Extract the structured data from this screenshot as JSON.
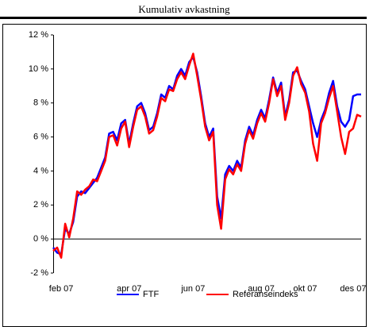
{
  "chart_data": {
    "type": "line",
    "title": "Kumulativ avkastning",
    "categories": [
      null,
      null,
      "feb 07",
      null,
      null,
      null,
      null,
      null,
      null,
      null,
      null,
      null,
      null,
      null,
      null,
      null,
      null,
      null,
      null,
      "apr 07",
      null,
      null,
      null,
      null,
      null,
      null,
      null,
      null,
      null,
      null,
      null,
      null,
      null,
      null,
      null,
      "jun 07",
      null,
      null,
      null,
      null,
      null,
      null,
      null,
      null,
      null,
      null,
      null,
      null,
      null,
      null,
      null,
      null,
      "aug 07",
      null,
      null,
      null,
      null,
      null,
      null,
      null,
      null,
      null,
      null,
      "okt 07",
      null,
      null,
      null,
      null,
      null,
      null,
      null,
      null,
      null,
      null,
      null,
      "des 07",
      null,
      null
    ],
    "series": [
      {
        "name": "FTF",
        "color": "#0000ff",
        "values": [
          -0.5,
          -0.8,
          -0.9,
          0.6,
          0.3,
          1.0,
          2.5,
          2.8,
          2.7,
          3.0,
          3.3,
          3.6,
          4.2,
          4.8,
          6.2,
          6.3,
          5.8,
          6.8,
          7.0,
          5.6,
          6.8,
          7.8,
          8.0,
          7.4,
          6.4,
          6.6,
          7.4,
          8.5,
          8.3,
          9.0,
          8.8,
          9.6,
          10.0,
          9.6,
          10.4,
          10.7,
          9.8,
          8.4,
          6.8,
          6.0,
          6.5,
          2.5,
          1.2,
          3.8,
          4.3,
          4.0,
          4.6,
          4.2,
          5.8,
          6.6,
          6.1,
          7.0,
          7.6,
          7.1,
          8.2,
          9.5,
          8.6,
          9.2,
          7.2,
          8.2,
          9.8,
          9.9,
          9.3,
          8.8,
          7.8,
          6.8,
          6.0,
          7.0,
          7.6,
          8.6,
          9.3,
          7.8,
          6.9,
          6.6,
          7.0,
          8.4,
          8.5,
          8.5
        ]
      },
      {
        "name": "Referanseindeks",
        "color": "#ff0000",
        "values": [
          -0.7,
          -0.5,
          -1.1,
          0.9,
          0.1,
          1.2,
          2.8,
          2.6,
          2.9,
          3.1,
          3.5,
          3.4,
          4.0,
          4.6,
          6.0,
          6.1,
          5.5,
          6.5,
          6.9,
          5.4,
          6.6,
          7.6,
          7.8,
          7.2,
          6.2,
          6.4,
          7.2,
          8.3,
          8.1,
          8.8,
          8.7,
          9.4,
          9.8,
          9.4,
          10.2,
          10.9,
          9.6,
          8.2,
          6.6,
          5.8,
          6.3,
          2.0,
          0.6,
          3.5,
          4.1,
          3.8,
          4.4,
          4.0,
          5.6,
          6.4,
          5.9,
          6.8,
          7.4,
          6.9,
          8.0,
          9.4,
          8.4,
          9.0,
          7.0,
          8.0,
          9.6,
          10.1,
          9.1,
          8.6,
          7.5,
          5.6,
          4.6,
          6.8,
          7.4,
          8.3,
          9.0,
          7.5,
          6.0,
          5.0,
          6.3,
          6.5,
          7.3,
          7.2
        ]
      }
    ],
    "ylim": [
      -2,
      12
    ],
    "yticks": [
      {
        "value": -2,
        "label": "-2 %"
      },
      {
        "value": 0,
        "label": "0 %"
      },
      {
        "value": 2,
        "label": "2 %"
      },
      {
        "value": 4,
        "label": "4 %"
      },
      {
        "value": 6,
        "label": "6 %"
      },
      {
        "value": 8,
        "label": "8 %"
      },
      {
        "value": 10,
        "label": "10 %"
      },
      {
        "value": 12,
        "label": "12 %"
      }
    ],
    "grid": false,
    "legend": "bottom"
  }
}
